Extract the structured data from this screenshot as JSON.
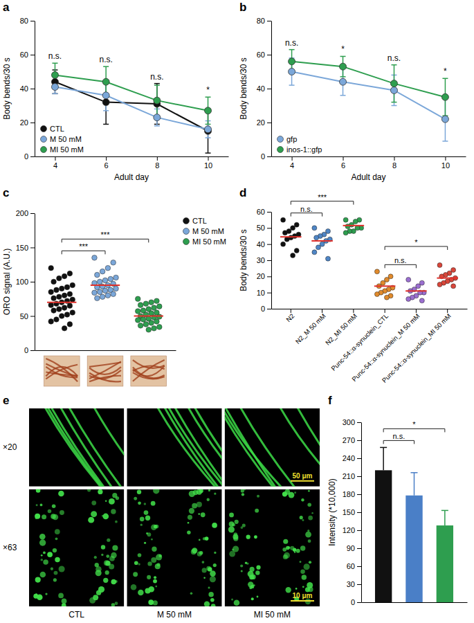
{
  "chart_data": [
    {
      "type": "line",
      "panel": "a",
      "x_label": "Adult day",
      "y_label": "Body bends/30 s",
      "categories": [
        "4",
        "6",
        "8",
        "10"
      ],
      "ylim": [
        0,
        80
      ],
      "yticks": [
        0,
        20,
        40,
        60,
        80
      ],
      "legend": "lower left",
      "marker": "circle",
      "series": [
        {
          "name": "CTL",
          "color": "#111111",
          "values": [
            44,
            32,
            31,
            15
          ],
          "errors": [
            7,
            13,
            12,
            13
          ]
        },
        {
          "name": "M 50 mM",
          "color": "#7ba7d9",
          "values": [
            41,
            36,
            23,
            16
          ],
          "errors": [
            4,
            9,
            5,
            5
          ]
        },
        {
          "name": "MI 50 mM",
          "color": "#2e9e4f",
          "values": [
            48,
            44,
            33,
            27
          ],
          "errors": [
            7,
            9,
            9,
            8
          ]
        }
      ],
      "annotations": [
        "n.s.",
        "n.s.",
        "n.s.",
        "*"
      ]
    },
    {
      "type": "line",
      "panel": "b",
      "x_label": "Adult day",
      "y_label": "Body bends/30 s",
      "categories": [
        "4",
        "6",
        "8",
        "10"
      ],
      "ylim": [
        0,
        80
      ],
      "yticks": [
        0,
        20,
        40,
        60,
        80
      ],
      "legend": "lower left",
      "marker": "circle",
      "series": [
        {
          "name": "gfp",
          "color": "#7ba7d9",
          "values": [
            50,
            44,
            39,
            22
          ],
          "errors": [
            8,
            8,
            9,
            13
          ]
        },
        {
          "name": "inos-1::gfp",
          "color": "#2e9e4f",
          "values": [
            56,
            53,
            43,
            35
          ],
          "errors": [
            7,
            6,
            11,
            11
          ]
        }
      ],
      "annotations": [
        "n.s.",
        "*",
        "n.s.",
        "*"
      ]
    },
    {
      "type": "strip",
      "panel": "c",
      "y_label": "ORO signal (A.U.)",
      "ylim": [
        0,
        200
      ],
      "yticks": [
        0,
        50,
        100,
        150,
        200
      ],
      "tick_labels": "y",
      "legend": "right",
      "series": [
        {
          "name": "CTL",
          "color": "#111111",
          "mean": 70,
          "values": [
            120,
            112,
            108,
            105,
            100,
            95,
            92,
            90,
            88,
            85,
            82,
            80,
            78,
            76,
            74,
            72,
            70,
            68,
            66,
            65,
            62,
            60,
            58,
            55,
            52,
            50,
            45,
            42,
            38,
            32
          ]
        },
        {
          "name": "M 50 mM",
          "color": "#7ba7d9",
          "mean": 95,
          "values": [
            135,
            128,
            120,
            115,
            110,
            106,
            104,
            102,
            100,
            98,
            97,
            95,
            93,
            92,
            90,
            88,
            87,
            85,
            84,
            82,
            80,
            78,
            76
          ]
        },
        {
          "name": "MI 50 mM",
          "color": "#2e9e4f",
          "mean": 50,
          "values": [
            75,
            72,
            70,
            68,
            66,
            64,
            62,
            60,
            58,
            57,
            55,
            54,
            52,
            50,
            49,
            48,
            46,
            45,
            44,
            42,
            40,
            38,
            36,
            34,
            32,
            30
          ]
        }
      ],
      "comparisons": [
        {
          "between": [
            0,
            1
          ],
          "label": "***"
        },
        {
          "between": [
            0,
            2
          ],
          "label": "***"
        }
      ]
    },
    {
      "type": "strip",
      "panel": "d",
      "y_label": "Body bends/30 s",
      "categories": [
        "N2",
        "N2_M 50 mM",
        "N2_MI 50 mM",
        "Punc-54::α-synuclein_CTL",
        "Punc-54::α-synuclein_M 50 mM",
        "Punc-54::α-synuclein_MI 50 mM"
      ],
      "ylim": [
        0,
        60
      ],
      "yticks": [
        0,
        10,
        20,
        30,
        40,
        50,
        60
      ],
      "colors": [
        "#111111",
        "#4f86c6",
        "#2e9e4f",
        "#e08a2c",
        "#9b6fd0",
        "#d9463a"
      ],
      "values": [
        [
          55,
          52,
          50,
          48,
          47,
          46,
          45,
          44,
          43,
          40,
          36,
          33
        ],
        [
          50,
          48,
          46,
          45,
          44,
          43,
          42,
          40,
          38,
          35,
          31
        ],
        [
          55,
          55,
          54,
          52,
          51,
          50,
          50,
          48,
          48,
          47
        ],
        [
          23,
          20,
          18,
          16,
          14,
          13,
          12,
          11,
          10,
          9,
          8,
          7
        ],
        [
          18,
          16,
          14,
          12,
          11,
          10,
          10,
          8,
          7,
          6,
          5
        ],
        [
          27,
          24,
          22,
          21,
          20,
          19,
          18,
          17,
          16,
          15,
          14
        ]
      ],
      "means": [
        44.5,
        42,
        51.5,
        14,
        11,
        19
      ],
      "comparisons": [
        {
          "between": [
            0,
            1
          ],
          "label": "n.s."
        },
        {
          "between": [
            0,
            2
          ],
          "label": "***"
        },
        {
          "between": [
            3,
            4
          ],
          "label": "n.s."
        },
        {
          "between": [
            3,
            5
          ],
          "label": "*"
        }
      ]
    },
    {
      "type": "image",
      "panel": "e",
      "magnifications": [
        "×20",
        "×63"
      ],
      "columns": [
        "CTL",
        "M 50 mM",
        "MI 50 mM"
      ],
      "scale_bars": [
        "50 μm",
        "10 μm"
      ]
    },
    {
      "type": "bar",
      "panel": "f",
      "y_label": "Intensity (*10,000)",
      "ylim": [
        0,
        300
      ],
      "yticks": [
        0,
        30,
        60,
        90,
        120,
        150,
        180,
        210,
        240,
        270,
        300
      ],
      "tick_labels": "y",
      "values": [
        220,
        178,
        128
      ],
      "errors": [
        38,
        38,
        25
      ],
      "colors": [
        "#111111",
        "#4a7fc7",
        "#2e9e4f"
      ],
      "comparisons": [
        {
          "between": [
            0,
            1
          ],
          "label": "n.s."
        },
        {
          "between": [
            0,
            2
          ],
          "label": "*"
        }
      ]
    }
  ]
}
